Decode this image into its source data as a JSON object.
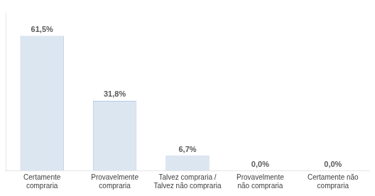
{
  "chart_data": {
    "type": "bar",
    "categories": [
      "Certamente\ncompraria",
      "Provavelmente\ncompraria",
      "Talvez compraria /\nTalvez não compraria",
      "Provavelmente\nnão compraria",
      "Certamente não\ncompraria"
    ],
    "values": [
      61.5,
      31.8,
      6.7,
      0.0,
      0.0
    ],
    "value_labels": [
      "61,5%",
      "31,8%",
      "6,7%",
      "0,0%",
      "0,0%"
    ],
    "data_labels": true,
    "color": "#dce6f1",
    "ylim": [
      0,
      72
    ],
    "grid": false,
    "tick_labels": "x"
  }
}
